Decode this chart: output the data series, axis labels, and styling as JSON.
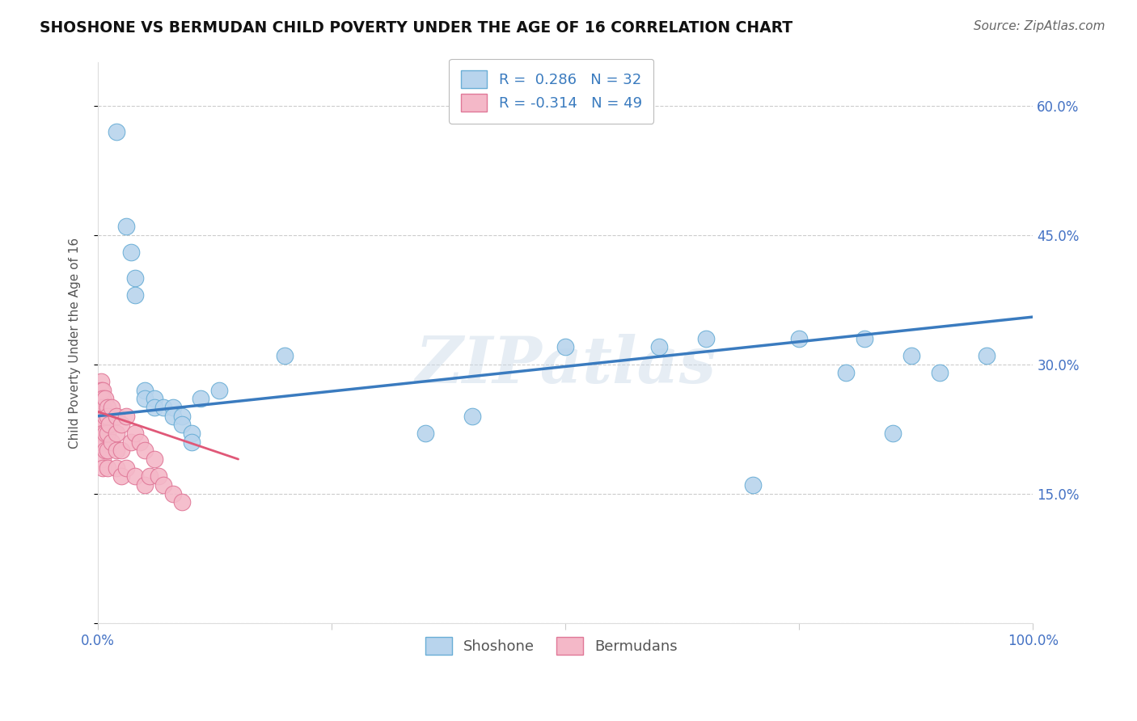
{
  "title": "SHOSHONE VS BERMUDAN CHILD POVERTY UNDER THE AGE OF 16 CORRELATION CHART",
  "source": "Source: ZipAtlas.com",
  "ylabel": "Child Poverty Under the Age of 16",
  "xlim": [
    0,
    100
  ],
  "ylim": [
    0,
    65
  ],
  "yticks": [
    0,
    15,
    30,
    45,
    60
  ],
  "ytick_labels": [
    "",
    "15.0%",
    "30.0%",
    "45.0%",
    "60.0%"
  ],
  "xticks": [
    0,
    25,
    50,
    75,
    100
  ],
  "xtick_labels": [
    "0.0%",
    "",
    "",
    "",
    "100.0%"
  ],
  "grid_color": "#cccccc",
  "background_color": "#ffffff",
  "shoshone_color": "#b8d4ed",
  "bermudans_color": "#f4b8c8",
  "shoshone_edge_color": "#6aaed6",
  "bermudans_edge_color": "#e07898",
  "shoshone_line_color": "#3a7bbf",
  "bermudans_line_color": "#e05878",
  "shoshone_r": 0.286,
  "shoshone_n": 32,
  "bermudans_r": -0.314,
  "bermudans_n": 49,
  "watermark": "ZIPatlas",
  "shoshone_line_x0": 0,
  "shoshone_line_y0": 24.0,
  "shoshone_line_x1": 100,
  "shoshone_line_y1": 35.5,
  "bermudans_line_x0": 0,
  "bermudans_line_y0": 24.5,
  "bermudans_line_x1": 15,
  "bermudans_line_y1": 19.0,
  "shoshone_x": [
    2,
    3,
    3.5,
    4,
    4,
    5,
    5,
    6,
    6,
    7,
    8,
    8,
    9,
    9,
    10,
    10,
    11,
    13,
    20,
    35,
    40,
    50,
    60,
    65,
    70,
    75,
    80,
    82,
    85,
    87,
    90,
    95
  ],
  "shoshone_y": [
    57,
    46,
    43,
    40,
    38,
    27,
    26,
    26,
    25,
    25,
    25,
    24,
    24,
    23,
    22,
    21,
    26,
    27,
    31,
    22,
    24,
    32,
    32,
    33,
    16,
    33,
    29,
    33,
    22,
    31,
    29,
    31
  ],
  "bermudans_x": [
    0.3,
    0.3,
    0.3,
    0.3,
    0.3,
    0.3,
    0.3,
    0.3,
    0.5,
    0.5,
    0.5,
    0.5,
    0.5,
    0.5,
    0.5,
    0.5,
    0.8,
    0.8,
    0.8,
    0.8,
    1,
    1,
    1,
    1,
    1,
    1.2,
    1.5,
    1.5,
    2,
    2,
    2,
    2,
    2.5,
    2.5,
    2.5,
    3,
    3,
    3.5,
    4,
    4,
    4.5,
    5,
    5,
    5.5,
    6,
    6.5,
    7,
    8,
    9
  ],
  "bermudans_y": [
    28,
    27,
    26,
    25,
    24,
    23,
    22,
    21,
    27,
    26,
    25,
    23,
    22,
    21,
    19,
    18,
    26,
    24,
    22,
    20,
    25,
    24,
    22,
    20,
    18,
    23,
    25,
    21,
    24,
    22,
    20,
    18,
    23,
    20,
    17,
    24,
    18,
    21,
    22,
    17,
    21,
    20,
    16,
    17,
    19,
    17,
    16,
    15,
    14
  ]
}
